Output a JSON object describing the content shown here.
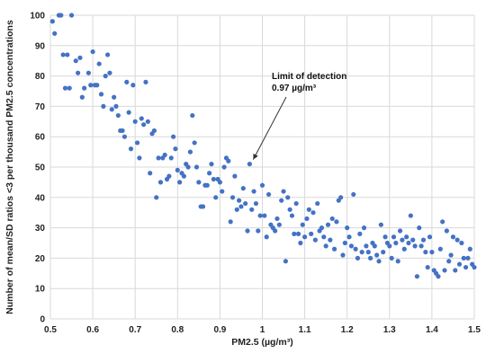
{
  "chart_data": {
    "type": "scatter",
    "title": "",
    "xlabel": "PM2.5 (µg/m³)",
    "ylabel": "Number of mean/SD ratios <3 per thousand PM2.5 concentrations",
    "xlim": [
      0.5,
      1.5
    ],
    "ylim": [
      0,
      100
    ],
    "x_ticks": [
      "0.5",
      "0.6",
      "0.7",
      "0.8",
      "0.9",
      "1",
      "1.1",
      "1.2",
      "1.3",
      "1.4",
      "1.5"
    ],
    "y_ticks": [
      "0",
      "10",
      "20",
      "30",
      "40",
      "50",
      "60",
      "70",
      "80",
      "90",
      "100"
    ],
    "grid": true,
    "legend": "none",
    "marker_color": "#4472c4",
    "annotation": {
      "line1": "Limit of detection",
      "line2": "0.97 µg/m³",
      "point": [
        0.97,
        51
      ]
    },
    "series": [
      {
        "points": [
          [
            0.505,
            98
          ],
          [
            0.51,
            94
          ],
          [
            0.52,
            100
          ],
          [
            0.525,
            100
          ],
          [
            0.53,
            87
          ],
          [
            0.535,
            76
          ],
          [
            0.54,
            87
          ],
          [
            0.545,
            76
          ],
          [
            0.55,
            100
          ],
          [
            0.56,
            85
          ],
          [
            0.565,
            81
          ],
          [
            0.57,
            86
          ],
          [
            0.575,
            73
          ],
          [
            0.58,
            76
          ],
          [
            0.59,
            81
          ],
          [
            0.595,
            77
          ],
          [
            0.6,
            88
          ],
          [
            0.605,
            77
          ],
          [
            0.61,
            77
          ],
          [
            0.615,
            84
          ],
          [
            0.62,
            74
          ],
          [
            0.625,
            70
          ],
          [
            0.63,
            80
          ],
          [
            0.635,
            87
          ],
          [
            0.64,
            81
          ],
          [
            0.645,
            69
          ],
          [
            0.65,
            73
          ],
          [
            0.655,
            70
          ],
          [
            0.66,
            67
          ],
          [
            0.665,
            62
          ],
          [
            0.67,
            62
          ],
          [
            0.675,
            60
          ],
          [
            0.68,
            78
          ],
          [
            0.685,
            68
          ],
          [
            0.69,
            56
          ],
          [
            0.695,
            77
          ],
          [
            0.7,
            65
          ],
          [
            0.705,
            58
          ],
          [
            0.71,
            53
          ],
          [
            0.715,
            66
          ],
          [
            0.72,
            64
          ],
          [
            0.725,
            78
          ],
          [
            0.73,
            65
          ],
          [
            0.735,
            48
          ],
          [
            0.74,
            61
          ],
          [
            0.745,
            62
          ],
          [
            0.75,
            40
          ],
          [
            0.755,
            53
          ],
          [
            0.76,
            45
          ],
          [
            0.765,
            53
          ],
          [
            0.77,
            54
          ],
          [
            0.775,
            46
          ],
          [
            0.78,
            47
          ],
          [
            0.785,
            53
          ],
          [
            0.79,
            60
          ],
          [
            0.795,
            56
          ],
          [
            0.8,
            49
          ],
          [
            0.805,
            45
          ],
          [
            0.81,
            48
          ],
          [
            0.815,
            47
          ],
          [
            0.82,
            51
          ],
          [
            0.825,
            50
          ],
          [
            0.83,
            55
          ],
          [
            0.835,
            67
          ],
          [
            0.84,
            58
          ],
          [
            0.845,
            50
          ],
          [
            0.85,
            45
          ],
          [
            0.855,
            37
          ],
          [
            0.86,
            37
          ],
          [
            0.865,
            44
          ],
          [
            0.87,
            44
          ],
          [
            0.875,
            48
          ],
          [
            0.88,
            51
          ],
          [
            0.885,
            46
          ],
          [
            0.89,
            40
          ],
          [
            0.895,
            46
          ],
          [
            0.9,
            45
          ],
          [
            0.905,
            42
          ],
          [
            0.91,
            50
          ],
          [
            0.915,
            53
          ],
          [
            0.92,
            52
          ],
          [
            0.925,
            32
          ],
          [
            0.93,
            40
          ],
          [
            0.935,
            47
          ],
          [
            0.94,
            36
          ],
          [
            0.945,
            39
          ],
          [
            0.95,
            37
          ],
          [
            0.955,
            43
          ],
          [
            0.96,
            38
          ],
          [
            0.965,
            29
          ],
          [
            0.97,
            51
          ],
          [
            0.975,
            36
          ],
          [
            0.98,
            42
          ],
          [
            0.985,
            38
          ],
          [
            0.99,
            29
          ],
          [
            0.995,
            34
          ],
          [
            1.0,
            44
          ],
          [
            1.005,
            34
          ],
          [
            1.01,
            27
          ],
          [
            1.015,
            41
          ],
          [
            1.02,
            31
          ],
          [
            1.025,
            30
          ],
          [
            1.03,
            29
          ],
          [
            1.035,
            33
          ],
          [
            1.04,
            31
          ],
          [
            1.045,
            39
          ],
          [
            1.05,
            42
          ],
          [
            1.055,
            19
          ],
          [
            1.06,
            40
          ],
          [
            1.065,
            36
          ],
          [
            1.07,
            34
          ],
          [
            1.075,
            28
          ],
          [
            1.08,
            38
          ],
          [
            1.085,
            28
          ],
          [
            1.09,
            25
          ],
          [
            1.095,
            31
          ],
          [
            1.1,
            27
          ],
          [
            1.105,
            33
          ],
          [
            1.11,
            36
          ],
          [
            1.115,
            28
          ],
          [
            1.12,
            35
          ],
          [
            1.125,
            26
          ],
          [
            1.13,
            38
          ],
          [
            1.135,
            29
          ],
          [
            1.14,
            30
          ],
          [
            1.145,
            27
          ],
          [
            1.15,
            24
          ],
          [
            1.155,
            31
          ],
          [
            1.16,
            26
          ],
          [
            1.165,
            33
          ],
          [
            1.17,
            23
          ],
          [
            1.175,
            32
          ],
          [
            1.18,
            39
          ],
          [
            1.185,
            40
          ],
          [
            1.19,
            21
          ],
          [
            1.195,
            25
          ],
          [
            1.2,
            30
          ],
          [
            1.205,
            27
          ],
          [
            1.21,
            24
          ],
          [
            1.215,
            41
          ],
          [
            1.22,
            23
          ],
          [
            1.225,
            20
          ],
          [
            1.23,
            28
          ],
          [
            1.235,
            22
          ],
          [
            1.24,
            30
          ],
          [
            1.245,
            24
          ],
          [
            1.25,
            22
          ],
          [
            1.255,
            20
          ],
          [
            1.26,
            25
          ],
          [
            1.265,
            24
          ],
          [
            1.27,
            21
          ],
          [
            1.275,
            19
          ],
          [
            1.28,
            31
          ],
          [
            1.285,
            22
          ],
          [
            1.29,
            27
          ],
          [
            1.295,
            25
          ],
          [
            1.3,
            24
          ],
          [
            1.305,
            20
          ],
          [
            1.31,
            27
          ],
          [
            1.315,
            25
          ],
          [
            1.32,
            19
          ],
          [
            1.325,
            29
          ],
          [
            1.33,
            26
          ],
          [
            1.335,
            23
          ],
          [
            1.34,
            27
          ],
          [
            1.345,
            25
          ],
          [
            1.35,
            34
          ],
          [
            1.355,
            26
          ],
          [
            1.36,
            24
          ],
          [
            1.365,
            14
          ],
          [
            1.37,
            30
          ],
          [
            1.375,
            24
          ],
          [
            1.38,
            26
          ],
          [
            1.385,
            22
          ],
          [
            1.39,
            17
          ],
          [
            1.395,
            27
          ],
          [
            1.4,
            22
          ],
          [
            1.405,
            16
          ],
          [
            1.41,
            15
          ],
          [
            1.415,
            14
          ],
          [
            1.42,
            23
          ],
          [
            1.425,
            32
          ],
          [
            1.43,
            16
          ],
          [
            1.435,
            29
          ],
          [
            1.44,
            19
          ],
          [
            1.445,
            21
          ],
          [
            1.45,
            27
          ],
          [
            1.455,
            16
          ],
          [
            1.46,
            26
          ],
          [
            1.465,
            18
          ],
          [
            1.47,
            25
          ],
          [
            1.475,
            20
          ],
          [
            1.48,
            17
          ],
          [
            1.485,
            20
          ],
          [
            1.49,
            23
          ],
          [
            1.495,
            18
          ],
          [
            1.5,
            17
          ]
        ]
      }
    ]
  }
}
